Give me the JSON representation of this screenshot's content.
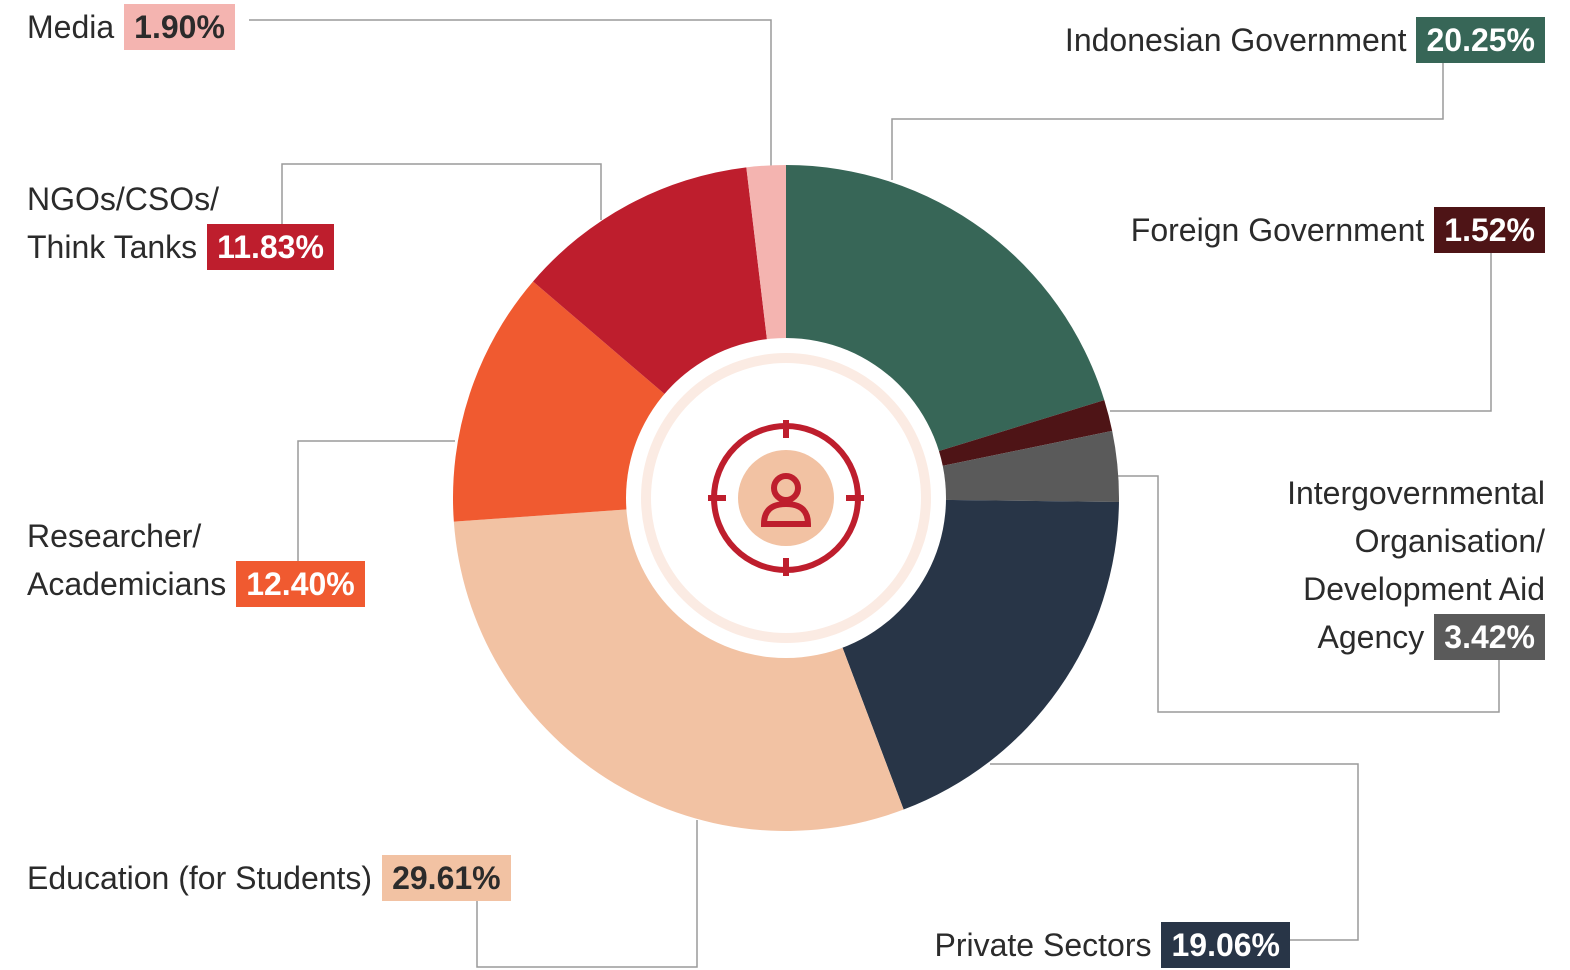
{
  "chart_data": {
    "type": "donut",
    "categories": [
      "Indonesian Government",
      "Foreign Government",
      "Intergovernmental\nOrganisation/\nDevelopment Aid\nAgency",
      "Private Sectors",
      "Education (for Students)",
      "Researcher/\nAcademicians",
      "NGOs/CSOs/\nThink Tanks",
      "Media"
    ],
    "values": [
      20.25,
      1.52,
      3.42,
      19.06,
      29.61,
      12.4,
      11.83,
      1.9
    ],
    "value_labels": [
      "20.25%",
      "1.52%",
      "3.42%",
      "19.06%",
      "29.61%",
      "12.40%",
      "11.83%",
      "1.90%"
    ],
    "colors": [
      "#376657",
      "#4e1416",
      "#5a5a5a",
      "#283547",
      "#f2c2a3",
      "#f05a30",
      "#be1e2d",
      "#f4b4b0"
    ]
  }
}
